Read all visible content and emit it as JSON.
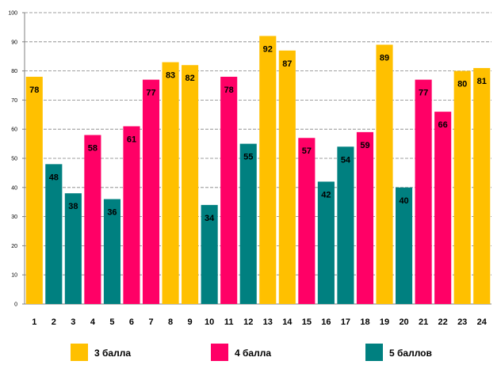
{
  "chart_data": {
    "type": "bar",
    "title": "",
    "xlabel": "",
    "ylabel": "",
    "ylim": [
      0,
      100
    ],
    "yticks": [
      0,
      10,
      20,
      30,
      40,
      50,
      60,
      70,
      80,
      90,
      100
    ],
    "grid": true,
    "categories": [
      "1",
      "2",
      "3",
      "4",
      "5",
      "6",
      "7",
      "8",
      "9",
      "10",
      "11",
      "12",
      "13",
      "14",
      "15",
      "16",
      "17",
      "18",
      "19",
      "20",
      "21",
      "22",
      "23",
      "24"
    ],
    "values": [
      78,
      48,
      38,
      58,
      36,
      61,
      77,
      83,
      82,
      34,
      78,
      55,
      92,
      87,
      57,
      42,
      54,
      59,
      89,
      40,
      77,
      66,
      80,
      81
    ],
    "groups": [
      "3",
      "5",
      "5",
      "4",
      "5",
      "4",
      "4",
      "3",
      "3",
      "5",
      "4",
      "5",
      "3",
      "3",
      "4",
      "5",
      "5",
      "4",
      "3",
      "5",
      "4",
      "4",
      "3",
      "3"
    ],
    "legend": [
      {
        "key": "3",
        "label": "3 балла",
        "color": "#FFC000"
      },
      {
        "key": "4",
        "label": "4 балла",
        "color": "#FF0066"
      },
      {
        "key": "5",
        "label": "5 баллов",
        "color": "#008080"
      }
    ],
    "legend_position": "bottom"
  }
}
